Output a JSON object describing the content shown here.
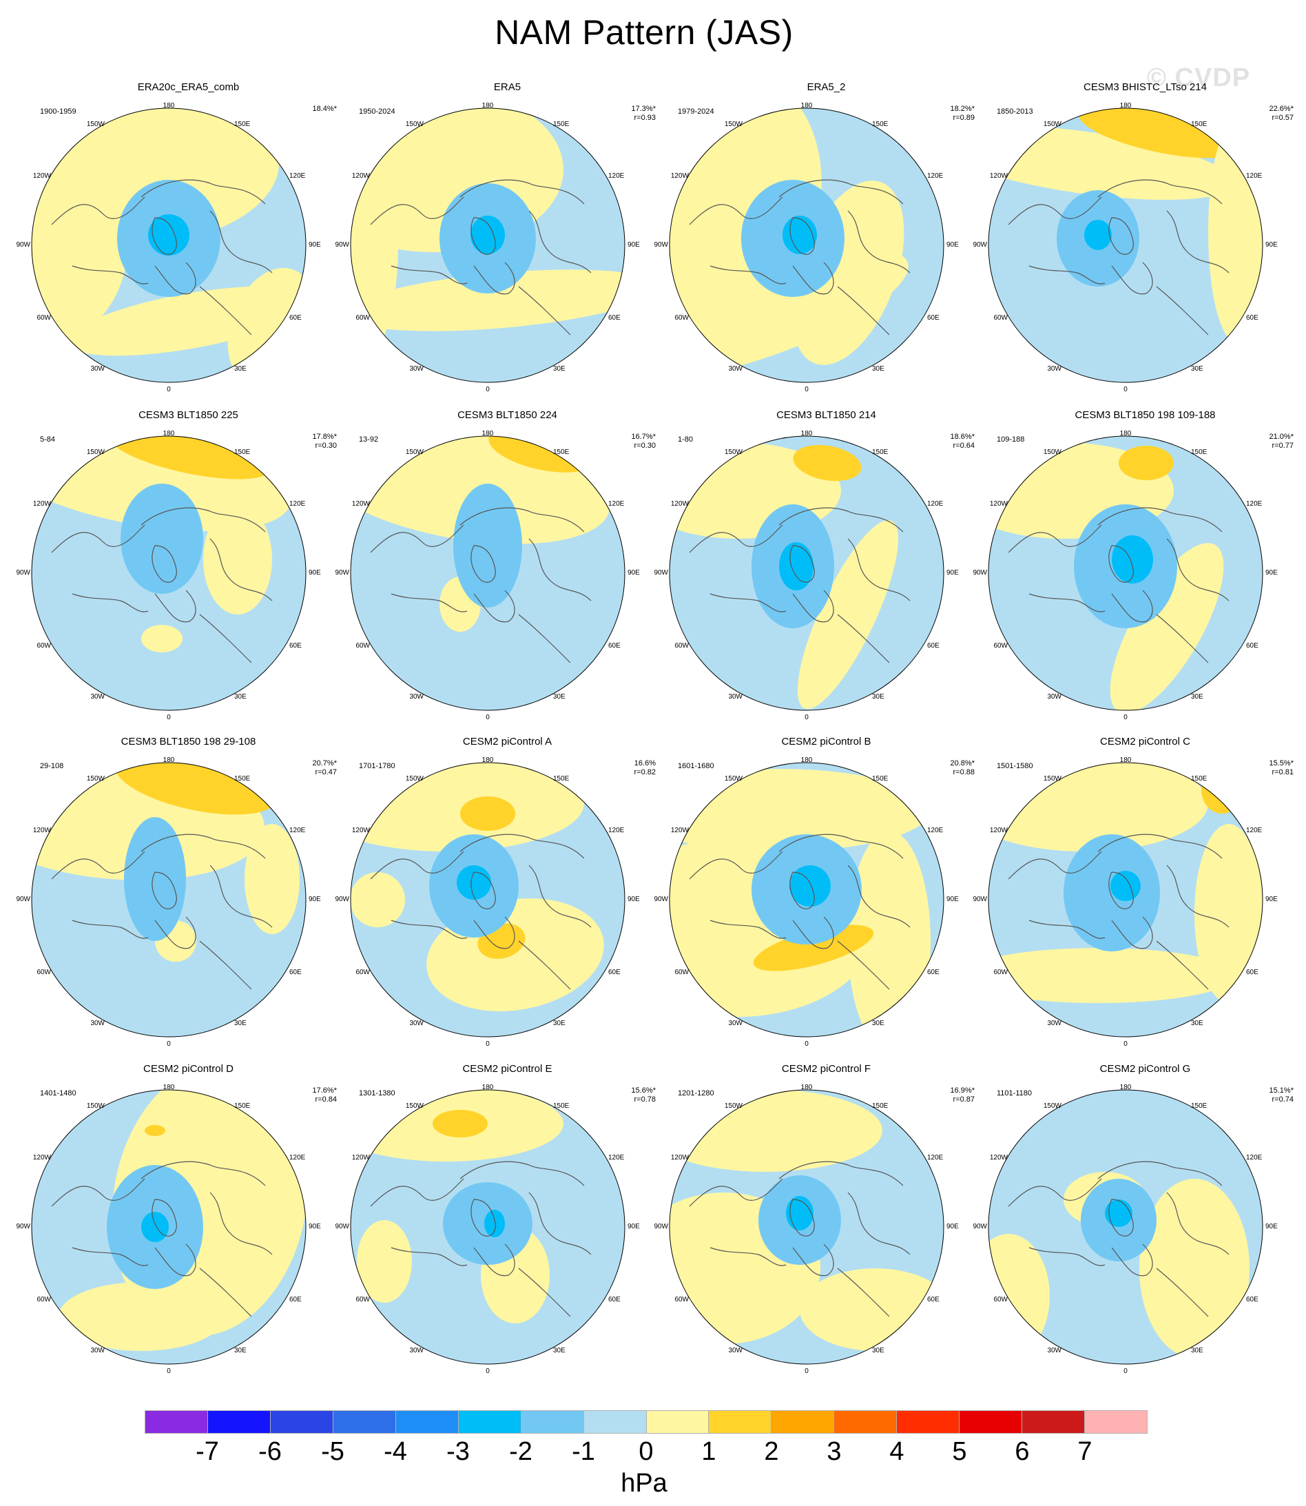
{
  "figure": {
    "title": "NAM Pattern (JAS)",
    "watermark": "© CVDP",
    "units": "hPa"
  },
  "longitude_labels": {
    "top": "180",
    "bottom": "0",
    "w150": "150W",
    "e150": "150E",
    "w120": "120W",
    "e120": "120E",
    "w90": "90W",
    "e90": "90E",
    "w60": "60W",
    "e60": "60E",
    "w30": "30W",
    "e30": "30E"
  },
  "colorbar": {
    "colors": [
      "#8a2be2",
      "#1414ff",
      "#2a44e6",
      "#2e6fe8",
      "#1f8df6",
      "#00bdf8",
      "#73c8f3",
      "#b3def2",
      "#fff6a1",
      "#ffd32a",
      "#ffa600",
      "#ff6a00",
      "#ff2d00",
      "#e60000",
      "#cc1a1a",
      "#ffb2b2"
    ],
    "tick_labels": [
      "-7",
      "-6",
      "-5",
      "-4",
      "-3",
      "-2",
      "-1",
      "0",
      "1",
      "2",
      "3",
      "4",
      "5",
      "6",
      "7"
    ]
  },
  "panels": [
    {
      "title": "ERA20c_ERA5_comb",
      "period": "1900-1959",
      "variance": "18.4%*",
      "r": ""
    },
    {
      "title": "ERA5",
      "period": "1950-2024",
      "variance": "17.3%*",
      "r": "r=0.93"
    },
    {
      "title": "ERA5_2",
      "period": "1979-2024",
      "variance": "18.2%*",
      "r": "r=0.89"
    },
    {
      "title": "CESM3 BHISTC_LTso 214",
      "period": "1850-2013",
      "variance": "22.6%*",
      "r": "r=0.57"
    },
    {
      "title": "CESM3 BLT1850 225",
      "period": "5-84",
      "variance": "17.8%*",
      "r": "r=0.30"
    },
    {
      "title": "CESM3 BLT1850 224",
      "period": "13-92",
      "variance": "16.7%*",
      "r": "r=0.30"
    },
    {
      "title": "CESM3 BLT1850 214",
      "period": "1-80",
      "variance": "18.6%*",
      "r": "r=0.64"
    },
    {
      "title": "CESM3 BLT1850 198 109-188",
      "period": "109-188",
      "variance": "21.0%*",
      "r": "r=0.77"
    },
    {
      "title": "CESM3 BLT1850 198 29-108",
      "period": "29-108",
      "variance": "20.7%*",
      "r": "r=0.47"
    },
    {
      "title": "CESM2 piControl A",
      "period": "1701-1780",
      "variance": "16.6%",
      "r": "r=0.82"
    },
    {
      "title": "CESM2 piControl B",
      "period": "1601-1680",
      "variance": "20.8%*",
      "r": "r=0.88"
    },
    {
      "title": "CESM2 piControl C",
      "period": "1501-1580",
      "variance": "15.5%*",
      "r": "r=0.81"
    },
    {
      "title": "CESM2 piControl D",
      "period": "1401-1480",
      "variance": "17.6%*",
      "r": "r=0.84"
    },
    {
      "title": "CESM2 piControl E",
      "period": "1301-1380",
      "variance": "15.6%*",
      "r": "r=0.78"
    },
    {
      "title": "CESM2 piControl F",
      "period": "1201-1280",
      "variance": "16.9%*",
      "r": "r=0.87"
    },
    {
      "title": "CESM2 piControl G",
      "period": "1101-1180",
      "variance": "15.1%*",
      "r": "r=0.74"
    }
  ]
}
